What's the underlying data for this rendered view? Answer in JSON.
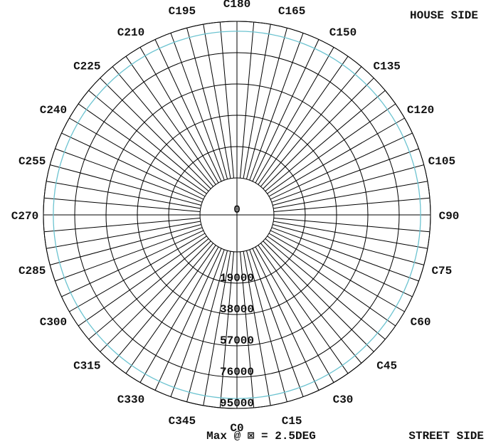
{
  "chart_data": {
    "type": "polar-line",
    "corner_labels": {
      "top_right": "HOUSE SIDE",
      "bottom_right": "STREET SIDE"
    },
    "max_note": "Max @ ⊠ = 2.5DEG",
    "radial_axis": {
      "ticks": [
        0,
        19000,
        38000,
        57000,
        76000,
        95000
      ],
      "tick_labels": [
        "0",
        "19000",
        "38000",
        "57000",
        "76000",
        "95000"
      ],
      "max": 95000
    },
    "angular_axis": {
      "spoke_step_deg": 5,
      "label_step_deg": 15,
      "labels": [
        {
          "angle": 0,
          "text": "C0"
        },
        {
          "angle": 15,
          "text": "C15"
        },
        {
          "angle": 30,
          "text": "C30"
        },
        {
          "angle": 45,
          "text": "C45"
        },
        {
          "angle": 60,
          "text": "C60"
        },
        {
          "angle": 75,
          "text": "C75"
        },
        {
          "angle": 90,
          "text": "C90"
        },
        {
          "angle": 105,
          "text": "C105"
        },
        {
          "angle": 120,
          "text": "C120"
        },
        {
          "angle": 135,
          "text": "C135"
        },
        {
          "angle": 150,
          "text": "C150"
        },
        {
          "angle": 165,
          "text": "C165"
        },
        {
          "angle": 180,
          "text": "C180"
        },
        {
          "angle": 195,
          "text": "C195"
        },
        {
          "angle": 210,
          "text": "C210"
        },
        {
          "angle": 225,
          "text": "C225"
        },
        {
          "angle": 240,
          "text": "C240"
        },
        {
          "angle": 255,
          "text": "C255"
        },
        {
          "angle": 270,
          "text": "C270"
        },
        {
          "angle": 285,
          "text": "C285"
        },
        {
          "angle": 300,
          "text": "C300"
        },
        {
          "angle": 315,
          "text": "C315"
        },
        {
          "angle": 330,
          "text": "C330"
        },
        {
          "angle": 345,
          "text": "C345"
        }
      ]
    },
    "series": [
      {
        "color": "#6cc3d0",
        "r": 89000,
        "angle_range": [
          0,
          360
        ]
      }
    ]
  }
}
